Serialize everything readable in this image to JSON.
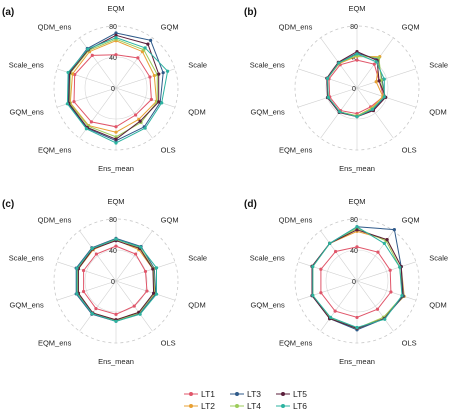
{
  "chart_data": [
    {
      "type": "radar",
      "panel_label": "(a)",
      "axes": [
        "EQM",
        "GQM",
        "Scale",
        "QDM",
        "OLS",
        "Ens_mean",
        "EQM_ens",
        "GQM_ens",
        "Scale_ens",
        "QDM_ens"
      ],
      "rticks": [
        "80",
        "40",
        "0"
      ],
      "rlim": [
        0,
        80
      ],
      "series": [
        {
          "name": "LT1",
          "values": [
            43,
            48,
            46,
            48,
            43,
            50,
            54,
            57,
            56,
            52
          ]
        },
        {
          "name": "LT2",
          "values": [
            61,
            58,
            52,
            55,
            50,
            57,
            60,
            62,
            59,
            58
          ]
        },
        {
          "name": "LT3",
          "values": [
            71,
            76,
            64,
            60,
            62,
            68,
            64,
            65,
            64,
            63
          ]
        },
        {
          "name": "LT4",
          "values": [
            63,
            61,
            56,
            56,
            55,
            63,
            61,
            63,
            62,
            60
          ]
        },
        {
          "name": "LT5",
          "values": [
            68,
            70,
            58,
            58,
            53,
            66,
            63,
            64,
            63,
            61
          ]
        },
        {
          "name": "LT6",
          "values": [
            65,
            64,
            70,
            62,
            64,
            71,
            65,
            66,
            65,
            62
          ]
        }
      ]
    },
    {
      "type": "radar",
      "panel_label": "(b)",
      "axes": [
        "EQM",
        "GQM",
        "Scale",
        "QDM",
        "OLS",
        "Ens_mean",
        "EQM_ens",
        "GQM_ens",
        "Scale_ens",
        "QDM_ens"
      ],
      "rticks": [
        "80",
        "40",
        "0"
      ],
      "rlim": [
        0,
        80
      ],
      "series": [
        {
          "name": "LT1",
          "values": [
            36,
            38,
            30,
            36,
            30,
            33,
            36,
            37,
            38,
            37
          ]
        },
        {
          "name": "LT2",
          "values": [
            41,
            50,
            26,
            35,
            32,
            36,
            38,
            39,
            40,
            39
          ]
        },
        {
          "name": "LT3",
          "values": [
            45,
            46,
            34,
            38,
            35,
            37,
            38,
            40,
            40,
            40
          ]
        },
        {
          "name": "LT4",
          "values": [
            42,
            48,
            33,
            37,
            33,
            36,
            38,
            39,
            40,
            40
          ]
        },
        {
          "name": "LT5",
          "values": [
            47,
            44,
            30,
            39,
            36,
            37,
            39,
            40,
            41,
            41
          ]
        },
        {
          "name": "LT6",
          "values": [
            44,
            42,
            37,
            37,
            34,
            37,
            38,
            39,
            40,
            40
          ]
        }
      ]
    },
    {
      "type": "radar",
      "panel_label": "(c)",
      "axes": [
        "EQM",
        "GQM",
        "Scale",
        "QDM",
        "OLS",
        "Ens_mean",
        "EQM_ens",
        "GQM_ens",
        "Scale_ens",
        "QDM_ens"
      ],
      "rticks": [
        "80",
        "40",
        "0"
      ],
      "rlim": [
        0,
        80
      ],
      "series": [
        {
          "name": "LT1",
          "values": [
            45,
            43,
            40,
            42,
            40,
            43,
            44,
            44,
            44,
            43
          ]
        },
        {
          "name": "LT2",
          "values": [
            53,
            50,
            50,
            53,
            50,
            50,
            51,
            51,
            51,
            50
          ]
        },
        {
          "name": "LT3",
          "values": [
            55,
            55,
            52,
            54,
            52,
            52,
            53,
            54,
            54,
            53
          ]
        },
        {
          "name": "LT4",
          "values": [
            54,
            53,
            51,
            52,
            51,
            51,
            52,
            52,
            52,
            52
          ]
        },
        {
          "name": "LT5",
          "values": [
            52,
            52,
            50,
            51,
            50,
            50,
            51,
            51,
            51,
            51
          ]
        },
        {
          "name": "LT6",
          "values": [
            54,
            54,
            55,
            55,
            53,
            52,
            52,
            53,
            53,
            52
          ]
        }
      ]
    },
    {
      "type": "radar",
      "panel_label": "(d)",
      "axes": [
        "EQM",
        "GQM",
        "Scale",
        "QDM",
        "OLS",
        "Ens_mean",
        "EQM_ens",
        "GQM_ens",
        "Scale_ens",
        "QDM_ens"
      ],
      "rticks": [
        "80",
        "40",
        "0"
      ],
      "rlim": [
        0,
        80
      ],
      "series": [
        {
          "name": "LT1",
          "values": [
            44,
            46,
            45,
            46,
            45,
            47,
            48,
            49,
            49,
            47
          ]
        },
        {
          "name": "LT2",
          "values": [
            64,
            66,
            60,
            64,
            58,
            62,
            60,
            60,
            61,
            60
          ]
        },
        {
          "name": "LT3",
          "values": [
            70,
            82,
            60,
            63,
            60,
            63,
            60,
            61,
            61,
            60
          ]
        },
        {
          "name": "LT4",
          "values": [
            68,
            64,
            58,
            62,
            58,
            61,
            59,
            60,
            60,
            60
          ]
        },
        {
          "name": "LT5",
          "values": [
            66,
            66,
            60,
            62,
            60,
            61,
            60,
            61,
            61,
            60
          ]
        },
        {
          "name": "LT6",
          "values": [
            70,
            60,
            58,
            61,
            61,
            60,
            58,
            60,
            60,
            60
          ]
        }
      ]
    }
  ],
  "legend": {
    "items": [
      {
        "label": "LT1",
        "color": "#e0566a",
        "marker": "circle"
      },
      {
        "label": "LT2",
        "color": "#e8a033",
        "marker": "circle"
      },
      {
        "label": "LT3",
        "color": "#2f5a8a",
        "marker": "circle"
      },
      {
        "label": "LT4",
        "color": "#9ccc5a",
        "marker": "circle"
      },
      {
        "label": "LT5",
        "color": "#5a1e3a",
        "marker": "circle"
      },
      {
        "label": "LT6",
        "color": "#2cb3a0",
        "marker": "circle"
      }
    ]
  }
}
